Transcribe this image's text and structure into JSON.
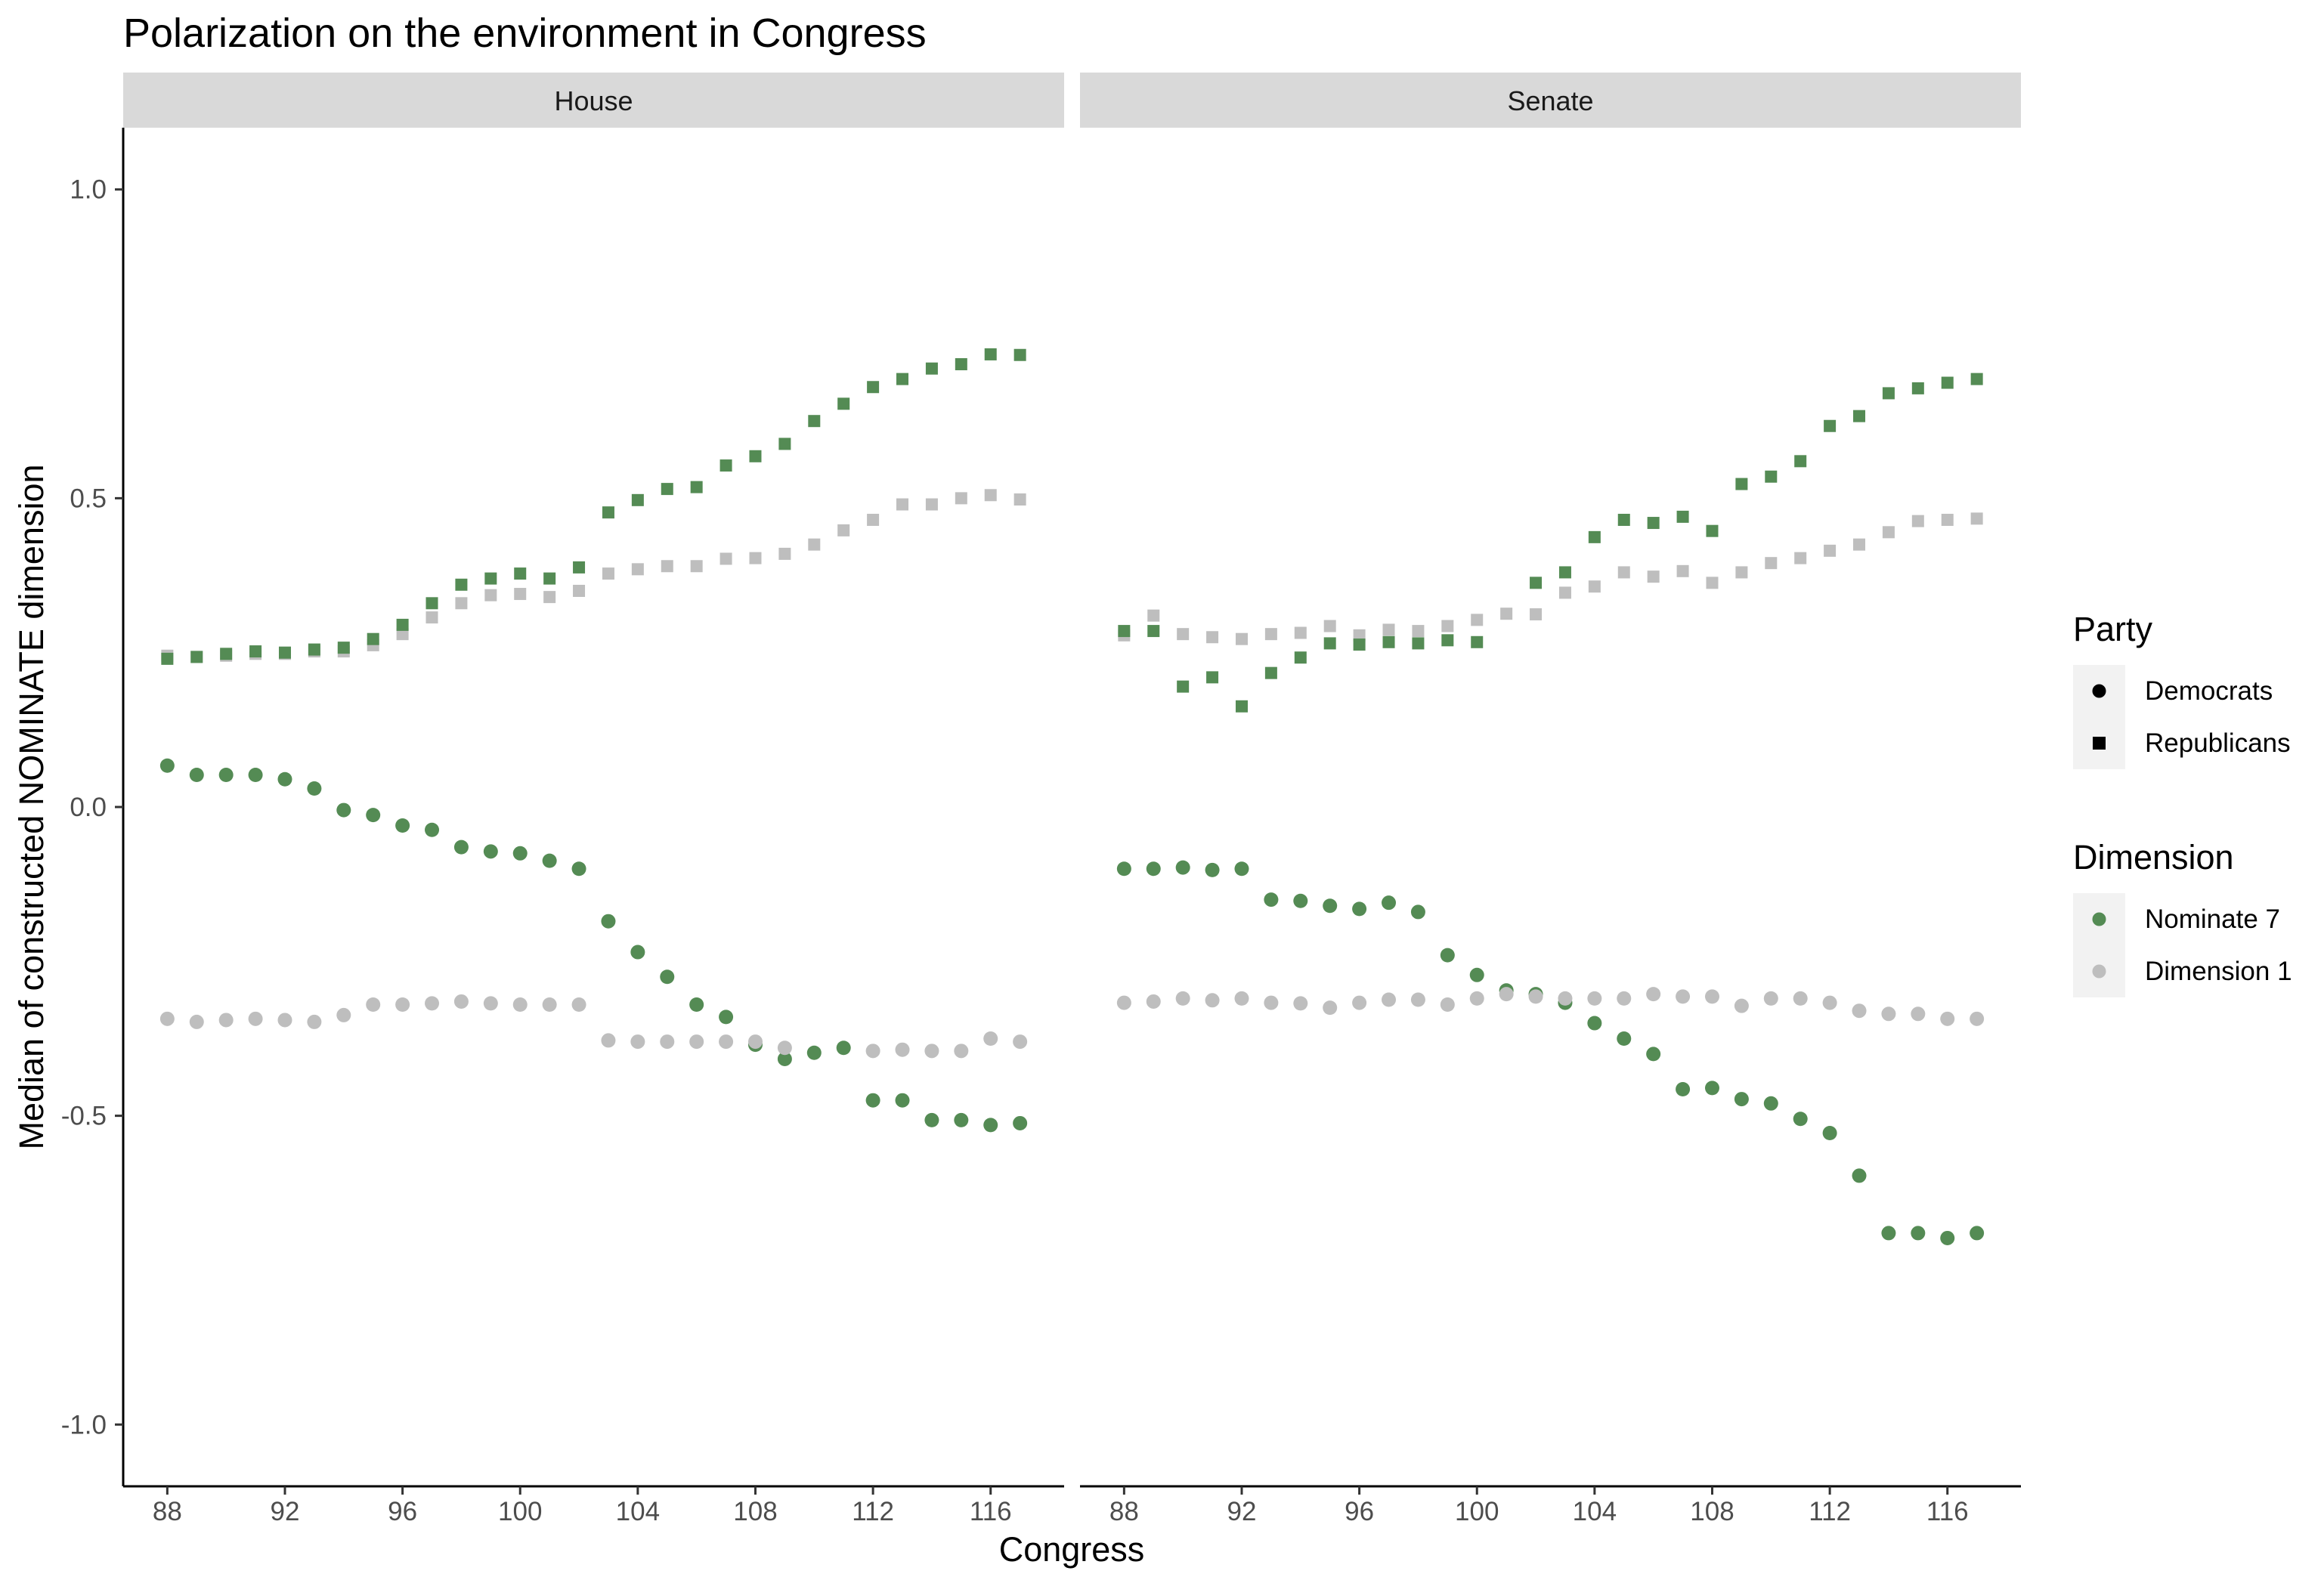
{
  "chart_data": {
    "type": "scatter",
    "title": "Polarization on the environment in Congress",
    "xlabel": "Congress",
    "ylabel": "Median of constructed NOMINATE dimension",
    "ylim": [
      -1.1,
      1.1
    ],
    "xlim": [
      86.5,
      118.5
    ],
    "yticks": [
      -1.0,
      -0.5,
      0.0,
      0.5,
      1.0
    ],
    "ytick_labels": [
      "-1.0",
      "-0.5",
      "0.0",
      "0.5",
      "1.0"
    ],
    "xticks": [
      88,
      92,
      96,
      100,
      104,
      108,
      112,
      116
    ],
    "xtick_labels": [
      "88",
      "92",
      "96",
      "100",
      "104",
      "108",
      "112",
      "116"
    ],
    "x": [
      88,
      89,
      90,
      91,
      92,
      93,
      94,
      95,
      96,
      97,
      98,
      99,
      100,
      101,
      102,
      103,
      104,
      105,
      106,
      107,
      108,
      109,
      110,
      111,
      112,
      113,
      114,
      115,
      116,
      117
    ],
    "grid": false,
    "legend_placement": "right",
    "legends": [
      {
        "title": "Party",
        "entries": [
          {
            "label": "Democrats",
            "shape": "circle"
          },
          {
            "label": "Republicans",
            "shape": "square"
          }
        ]
      },
      {
        "title": "Dimension",
        "entries": [
          {
            "label": "Nominate 7",
            "color": "#548b54"
          },
          {
            "label": "Dimension 1",
            "color": "#bebebe"
          }
        ]
      }
    ],
    "colors": {
      "Nominate 7": "#548b54",
      "Dimension 1": "#bebebe"
    },
    "panels": [
      {
        "label": "House",
        "series": [
          {
            "party": "Republicans",
            "dimension": "Dimension 1",
            "shape": "square",
            "color": "#bebebe",
            "values": [
              0.245,
              0.243,
              0.245,
              0.248,
              0.248,
              0.252,
              0.252,
              0.262,
              0.28,
              0.307,
              0.33,
              0.343,
              0.345,
              0.34,
              0.35,
              0.378,
              0.385,
              0.39,
              0.39,
              0.402,
              0.403,
              0.41,
              0.425,
              0.448,
              0.465,
              0.49,
              0.49,
              0.5,
              0.505,
              0.498
            ]
          },
          {
            "party": "Republicans",
            "dimension": "Nominate 7",
            "shape": "square",
            "color": "#548b54",
            "values": [
              0.24,
              0.243,
              0.248,
              0.252,
              0.25,
              0.255,
              0.258,
              0.272,
              0.295,
              0.33,
              0.36,
              0.37,
              0.378,
              0.37,
              0.388,
              0.477,
              0.497,
              0.515,
              0.518,
              0.553,
              0.568,
              0.588,
              0.625,
              0.653,
              0.68,
              0.693,
              0.71,
              0.717,
              0.733,
              0.732
            ]
          },
          {
            "party": "Democrats",
            "dimension": "Nominate 7",
            "shape": "circle",
            "color": "#548b54",
            "values": [
              0.067,
              0.052,
              0.052,
              0.052,
              0.045,
              0.03,
              -0.005,
              -0.013,
              -0.03,
              -0.037,
              -0.065,
              -0.072,
              -0.075,
              -0.087,
              -0.1,
              -0.185,
              -0.235,
              -0.275,
              -0.32,
              -0.34,
              -0.385,
              -0.408,
              -0.398,
              -0.39,
              -0.475,
              -0.475,
              -0.507,
              -0.507,
              -0.515,
              -0.512
            ]
          },
          {
            "party": "Democrats",
            "dimension": "Dimension 1",
            "shape": "circle",
            "color": "#bebebe",
            "values": [
              -0.343,
              -0.348,
              -0.345,
              -0.343,
              -0.345,
              -0.348,
              -0.337,
              -0.32,
              -0.32,
              -0.318,
              -0.315,
              -0.318,
              -0.32,
              -0.32,
              -0.32,
              -0.378,
              -0.38,
              -0.38,
              -0.38,
              -0.38,
              -0.38,
              -0.39,
              null,
              null,
              -0.395,
              -0.393,
              -0.395,
              -0.395,
              -0.375,
              -0.38
            ]
          }
        ]
      },
      {
        "label": "Senate",
        "series": [
          {
            "party": "Republicans",
            "dimension": "Dimension 1",
            "shape": "square",
            "color": "#bebebe",
            "values": [
              0.278,
              0.31,
              0.28,
              0.275,
              0.272,
              0.28,
              0.282,
              0.293,
              0.278,
              0.287,
              0.285,
              0.293,
              0.303,
              0.313,
              0.312,
              0.347,
              0.357,
              0.38,
              0.373,
              0.382,
              0.363,
              0.38,
              0.395,
              0.403,
              0.415,
              0.425,
              0.445,
              0.463,
              0.465,
              0.467
            ]
          },
          {
            "party": "Republicans",
            "dimension": "Nominate 7",
            "shape": "square",
            "color": "#548b54",
            "values": [
              0.285,
              0.285,
              0.195,
              0.21,
              0.163,
              0.217,
              0.242,
              0.265,
              0.263,
              0.267,
              0.265,
              0.27,
              0.267,
              null,
              0.363,
              0.38,
              0.437,
              0.465,
              0.46,
              0.47,
              0.447,
              0.523,
              0.535,
              0.56,
              0.617,
              0.633,
              0.67,
              0.678,
              0.687,
              0.693
            ]
          },
          {
            "party": "Democrats",
            "dimension": "Nominate 7",
            "shape": "circle",
            "color": "#548b54",
            "values": [
              -0.1,
              -0.1,
              -0.098,
              -0.102,
              -0.1,
              -0.15,
              -0.152,
              -0.16,
              -0.165,
              -0.155,
              -0.17,
              -0.24,
              -0.272,
              -0.297,
              -0.303,
              -0.317,
              -0.35,
              -0.375,
              -0.4,
              -0.457,
              -0.455,
              -0.473,
              -0.48,
              -0.505,
              -0.528,
              -0.597,
              -0.69,
              -0.69,
              -0.698,
              -0.69
            ]
          },
          {
            "party": "Democrats",
            "dimension": "Dimension 1",
            "shape": "circle",
            "color": "#bebebe",
            "values": [
              -0.317,
              -0.315,
              -0.31,
              -0.313,
              -0.31,
              -0.317,
              -0.318,
              -0.325,
              -0.317,
              -0.312,
              -0.312,
              -0.32,
              -0.31,
              -0.303,
              -0.307,
              -0.31,
              -0.31,
              -0.31,
              -0.303,
              -0.307,
              -0.307,
              -0.322,
              -0.31,
              -0.31,
              -0.317,
              -0.33,
              -0.335,
              -0.335,
              -0.343,
              -0.343
            ]
          }
        ]
      }
    ]
  }
}
